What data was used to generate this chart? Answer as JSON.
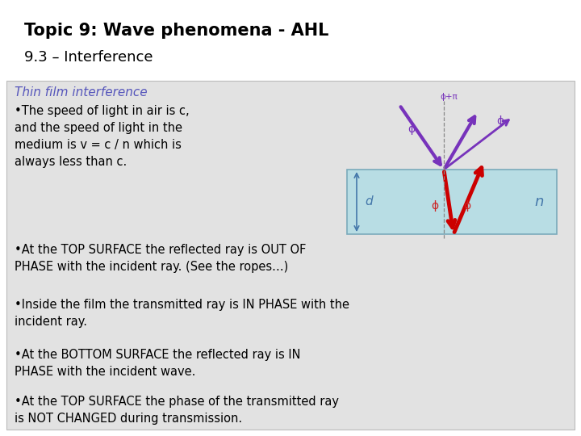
{
  "title_bold": "Topic 9: Wave phenomena - AHL",
  "title_normal": "9.3 – Interference",
  "bg_color": "#e2e2e2",
  "white_bg": "#ffffff",
  "subtitle_color": "#5555bb",
  "subtitle_text": "Thin film interference",
  "bullet_points": [
    "•The speed of light in air is c,\nand the speed of light in the\nmedium is v = c / n which is\nalways less than c.",
    "•At the TOP SURFACE the reflected ray is OUT OF\nPHASE with the incident ray. (See the ropes…)",
    "•Inside the film the transmitted ray is IN PHASE with the\nincident ray.",
    "•At the BOTTOM SURFACE the reflected ray is IN\nPHASE with the incident wave.",
    "•At the TOP SURFACE the phase of the transmitted ray\nis NOT CHANGED during transmission."
  ],
  "film_color": "#b8dde4",
  "film_edge": "#7aaabb",
  "arrow_purple": "#7733bb",
  "arrow_red": "#cc0000",
  "phi_purple": "#7733bb",
  "phi_red": "#cc2222",
  "label_blue": "#4477aa",
  "dashed_color": "#888888"
}
